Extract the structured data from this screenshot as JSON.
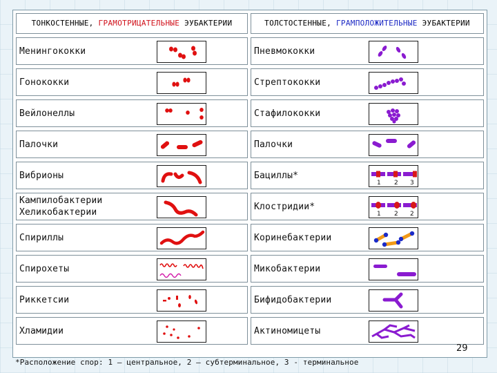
{
  "header": {
    "left": {
      "prefix": "ТОНКОСТЕННЫЕ,",
      "gram": "ГРАМОТРИЦАТЕЛЬНЫЕ",
      "suffix": "ЭУБАКТЕРИИ"
    },
    "right": {
      "prefix": "ТОЛСТОСТЕННЫЕ,",
      "gram": "ГРАМПОЛОЖИТЕЛЬНЫЕ",
      "suffix": "ЭУБАКТЕРИИ"
    }
  },
  "rows": [
    {
      "left": "Менингококки",
      "right": "Пневмококки"
    },
    {
      "left": "Гонококки",
      "right": "Стрептококки"
    },
    {
      "left": "Вейлонеллы",
      "right": "Стафилококки"
    },
    {
      "left": "Палочки",
      "right": "Палочки"
    },
    {
      "left": "Вибрионы",
      "right": "Бациллы*"
    },
    {
      "left": "Кампилобактерии",
      "left2": "Хеликобактерии",
      "right": "Клостридии*"
    },
    {
      "left": "Спириллы",
      "right": "Коринебактерии"
    },
    {
      "left": "Спирохеты",
      "right": "Микобактерии"
    },
    {
      "left": "Риккетсии",
      "right": "Бифидобактерии"
    },
    {
      "left": "Хламидии",
      "right": "Актиномицеты"
    }
  ],
  "spore_labels": {
    "bacilli": [
      "1",
      "2",
      "3"
    ],
    "clostridia": [
      "1",
      "2",
      "2"
    ]
  },
  "page_number": "29",
  "footnote": "*Расположение спор: 1 – центральное, 2 – субтерминальное, 3 - терминальное",
  "colors": {
    "gram_negative": "#e01010",
    "gram_positive": "#8a1bd0",
    "spore_band": "#d81818",
    "coryne_body": "#f29a18",
    "coryne_granule": "#1b2bc8"
  }
}
